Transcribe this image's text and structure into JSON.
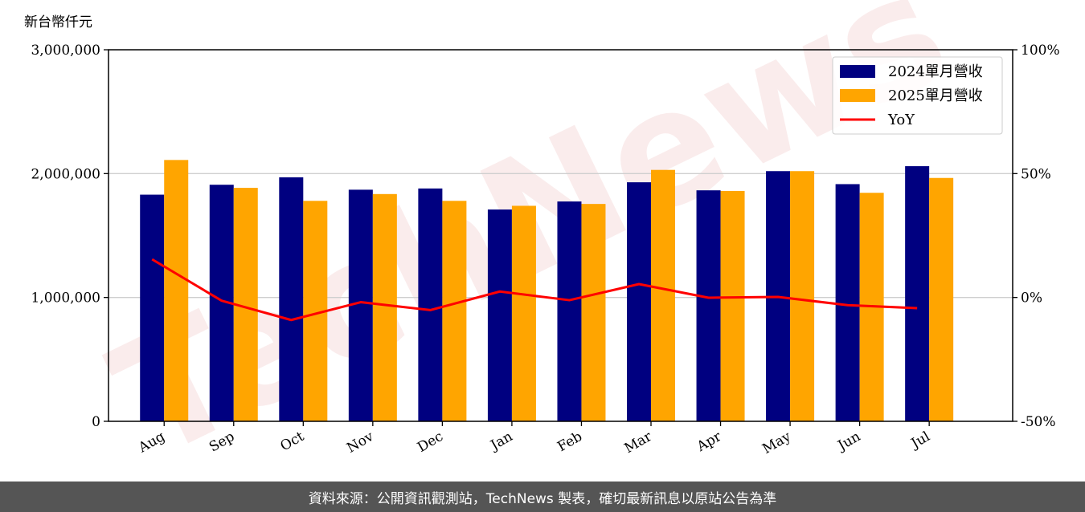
{
  "chart_data": {
    "type": "bar",
    "y_unit_label": "新台幣仟元",
    "categories": [
      "Aug",
      "Sep",
      "Oct",
      "Nov",
      "Dec",
      "Jan",
      "Feb",
      "Mar",
      "Apr",
      "May",
      "Jun",
      "Jul"
    ],
    "series": [
      {
        "name": "2024單月營收",
        "type": "bar",
        "color": "#000080",
        "values": [
          1830000,
          1910000,
          1970000,
          1870000,
          1880000,
          1710000,
          1775000,
          1930000,
          1865000,
          2020000,
          1915000,
          2060000
        ]
      },
      {
        "name": "2025單月營收",
        "type": "bar",
        "color": "#ffa500",
        "values": [
          2110000,
          1885000,
          1780000,
          1835000,
          1780000,
          1740000,
          1755000,
          2030000,
          1860000,
          2020000,
          1845000,
          1965000
        ]
      },
      {
        "name": "YoY",
        "type": "line",
        "axis": "right",
        "color": "#ff0000",
        "values": [
          15.4,
          -1.3,
          -9.1,
          -1.9,
          -5.1,
          2.4,
          -1.1,
          5.4,
          -0.1,
          0.2,
          -3.1,
          -4.3
        ]
      }
    ],
    "y_left": {
      "min": 0,
      "max": 3000000,
      "ticks": [
        0,
        1000000,
        2000000,
        3000000
      ],
      "tick_labels": [
        "0",
        "1,000,000",
        "2,000,000",
        "3,000,000"
      ]
    },
    "y_right": {
      "min": -50,
      "max": 100,
      "ticks": [
        -50,
        0,
        50,
        100
      ],
      "tick_labels": [
        "-50%",
        "0%",
        "50%",
        "100%"
      ]
    },
    "grid": "horizontal",
    "legend_position": "top-right"
  },
  "watermark_text": "TechNews",
  "footer_text": "資料來源：公開資訊觀測站，TechNews 製表，確切最新訊息以原站公告為準"
}
